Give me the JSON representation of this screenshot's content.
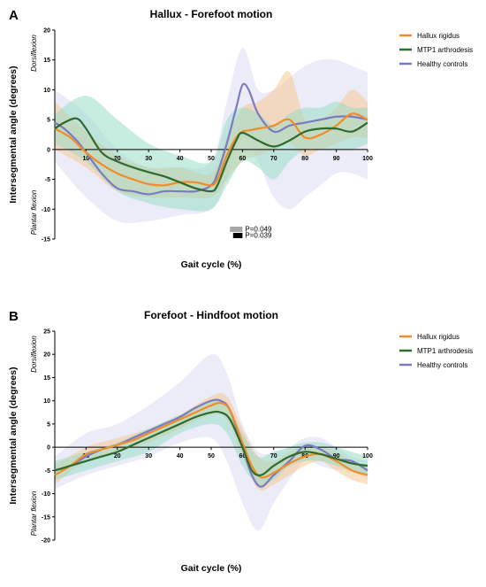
{
  "chart_data": [
    {
      "panel": "A",
      "type": "line",
      "title": "Hallux - Forefoot motion",
      "xlabel": "Gait cycle (%)",
      "ylabel": "Intersegmental angle (degrees)",
      "upper_label": "Dorsiflexion",
      "lower_label": "Plantar flexion",
      "xlim": [
        0,
        100
      ],
      "ylim": [
        -15,
        20
      ],
      "xticks": [
        10,
        20,
        30,
        40,
        50,
        60,
        70,
        80,
        90,
        100
      ],
      "yticks": [
        -15,
        -10,
        -5,
        0,
        5,
        10,
        15,
        20
      ],
      "grid": false,
      "legend_position": "top-right",
      "series": [
        {
          "name": "Hallux rigidus",
          "color": "#F28C28",
          "band_color": "#F7C48A",
          "x": [
            0,
            5,
            10,
            15,
            20,
            25,
            30,
            35,
            40,
            45,
            50,
            52,
            55,
            58,
            60,
            62,
            65,
            70,
            75,
            80,
            85,
            90,
            95,
            100
          ],
          "y": [
            3.5,
            2.0,
            -0.5,
            -2.5,
            -4.0,
            -5.0,
            -5.8,
            -6.0,
            -5.5,
            -5.5,
            -6.0,
            -5.0,
            -1.0,
            2.0,
            3.0,
            3.2,
            3.5,
            4.0,
            5.0,
            2.0,
            2.5,
            4.0,
            6.0,
            5.0
          ],
          "band_x": [
            0,
            10,
            20,
            30,
            40,
            50,
            55,
            60,
            65,
            70,
            75,
            80,
            85,
            90,
            95,
            100
          ],
          "band_upper": [
            8,
            3,
            -1,
            -3,
            -3,
            -4,
            2,
            7,
            8,
            10,
            13,
            5,
            5,
            7,
            10,
            8
          ],
          "band_lower": [
            0,
            -3,
            -7,
            -8,
            -8,
            -8,
            -5,
            -2,
            -1,
            0,
            1,
            -1,
            0,
            1,
            2,
            2
          ]
        },
        {
          "name": "MTP1 arthrodesis",
          "color": "#2E6B2E",
          "band_color": "#8FDCC2",
          "x": [
            0,
            3,
            7,
            10,
            15,
            20,
            25,
            30,
            35,
            40,
            45,
            50,
            52,
            55,
            58,
            60,
            65,
            70,
            75,
            80,
            85,
            90,
            95,
            100
          ],
          "y": [
            3.5,
            4.5,
            5.2,
            3.5,
            -0.5,
            -2.0,
            -3.0,
            -3.8,
            -4.5,
            -5.5,
            -6.5,
            -7.0,
            -6.0,
            -2.0,
            1.5,
            2.8,
            1.5,
            0.5,
            1.5,
            3.0,
            3.5,
            3.5,
            3.0,
            4.5
          ],
          "band_x": [
            0,
            10,
            20,
            30,
            40,
            50,
            55,
            60,
            65,
            70,
            75,
            80,
            85,
            90,
            95,
            100
          ],
          "band_upper": [
            6,
            9,
            5,
            1,
            -1,
            -2,
            5,
            7,
            6,
            4,
            6,
            7,
            7,
            8,
            7,
            7
          ],
          "band_lower": [
            1,
            -2,
            -7,
            -9,
            -10,
            -10,
            -6,
            -2,
            -3,
            -5,
            -2,
            0,
            0,
            0,
            0,
            1
          ]
        },
        {
          "name": "Healthy controls",
          "color": "#7B7BC4",
          "band_color": "#DCDCF4",
          "x": [
            0,
            3,
            7,
            10,
            15,
            20,
            25,
            30,
            35,
            40,
            45,
            50,
            52,
            55,
            58,
            60,
            62,
            65,
            70,
            75,
            80,
            85,
            90,
            95,
            100
          ],
          "y": [
            4.5,
            3.5,
            1.5,
            -0.5,
            -4.0,
            -6.5,
            -7.0,
            -7.5,
            -7.0,
            -7.0,
            -7.0,
            -6.0,
            -4.0,
            1.0,
            7.0,
            10.8,
            10.0,
            6.0,
            3.0,
            4.0,
            4.5,
            5.0,
            5.5,
            5.5,
            5.0
          ],
          "band_x": [
            0,
            10,
            20,
            30,
            40,
            50,
            55,
            60,
            65,
            70,
            75,
            80,
            85,
            90,
            95,
            100
          ],
          "band_upper": [
            10,
            6,
            0,
            -3,
            -3,
            -2,
            8,
            17,
            10,
            10,
            12,
            14,
            15,
            15,
            14,
            13
          ],
          "band_lower": [
            -2,
            -8,
            -12,
            -12,
            -11,
            -10,
            -5,
            2,
            -2,
            -8,
            -10,
            -8,
            -6,
            -4,
            -4,
            -5
          ]
        }
      ],
      "significance": [
        {
          "label": "P=0.049",
          "x_start": 56,
          "x_end": 60,
          "color": "#A6A6A6"
        },
        {
          "label": "P=0.039",
          "x_start": 57,
          "x_end": 60,
          "color": "#000000"
        }
      ]
    },
    {
      "panel": "B",
      "type": "line",
      "title": "Forefoot - Hindfoot motion",
      "xlabel": "Gait cycle (%)",
      "ylabel": "Intersegmental angle (degrees)",
      "upper_label": "Dorsiflexion",
      "lower_label": "Plantar flexion",
      "xlim": [
        0,
        100
      ],
      "ylim": [
        -20,
        25
      ],
      "xticks": [
        10,
        20,
        30,
        40,
        50,
        60,
        70,
        80,
        90,
        100
      ],
      "yticks": [
        -20,
        -15,
        -10,
        -5,
        0,
        5,
        10,
        15,
        20,
        25
      ],
      "grid": false,
      "legend_position": "top-right",
      "series": [
        {
          "name": "Hallux rigidus",
          "color": "#F28C28",
          "band_color": "#F7C48A",
          "x": [
            0,
            5,
            10,
            15,
            20,
            25,
            30,
            35,
            40,
            45,
            50,
            53,
            56,
            60,
            63,
            66,
            70,
            75,
            80,
            85,
            90,
            95,
            100
          ],
          "y": [
            -6.0,
            -4.0,
            -1.5,
            -0.5,
            0.5,
            1.5,
            3.0,
            4.5,
            6.0,
            7.5,
            9.0,
            9.5,
            8.0,
            1.0,
            -4.0,
            -6.5,
            -5.5,
            -3.5,
            -2.0,
            -1.5,
            -3.0,
            -5.0,
            -6.0
          ],
          "band_x": [
            0,
            10,
            20,
            30,
            40,
            50,
            55,
            60,
            65,
            70,
            75,
            80,
            85,
            90,
            95,
            100
          ],
          "band_upper": [
            -4,
            0,
            2,
            4,
            7,
            11,
            11,
            4,
            -2,
            -3,
            -1,
            0,
            0,
            -1,
            -3,
            -4
          ],
          "band_lower": [
            -8,
            -3,
            -1,
            1,
            4,
            7,
            6,
            -2,
            -9,
            -8,
            -6,
            -4,
            -3,
            -5,
            -7,
            -8
          ]
        },
        {
          "name": "MTP1 arthrodesis",
          "color": "#2E6B2E",
          "band_color": "#8FDCC2",
          "x": [
            0,
            5,
            10,
            15,
            20,
            25,
            30,
            35,
            40,
            45,
            50,
            53,
            56,
            60,
            63,
            66,
            70,
            75,
            80,
            85,
            90,
            95,
            100
          ],
          "y": [
            -5.0,
            -4.0,
            -3.0,
            -2.0,
            -1.0,
            0.5,
            2.0,
            3.5,
            5.0,
            6.5,
            7.5,
            7.5,
            6.0,
            0.0,
            -5.0,
            -6.0,
            -4.0,
            -2.0,
            -1.0,
            -1.5,
            -2.5,
            -3.5,
            -4.0
          ],
          "band_x": [
            0,
            10,
            20,
            30,
            40,
            50,
            55,
            60,
            65,
            70,
            75,
            80,
            85,
            90,
            95,
            100
          ],
          "band_upper": [
            -3,
            -1,
            1,
            4,
            7,
            10,
            9,
            3,
            -2,
            -1,
            0,
            1,
            1,
            0,
            -1,
            -2
          ],
          "band_lower": [
            -7,
            -5,
            -3,
            -1,
            3,
            5,
            3,
            -4,
            -8,
            -7,
            -4,
            -3,
            -3,
            -4,
            -5,
            -6
          ]
        },
        {
          "name": "Healthy controls",
          "color": "#7B7BC4",
          "band_color": "#DCDCF4",
          "x": [
            0,
            5,
            10,
            15,
            20,
            25,
            30,
            35,
            40,
            45,
            50,
            53,
            56,
            60,
            63,
            66,
            70,
            75,
            80,
            85,
            90,
            95,
            100
          ],
          "y": [
            -5.0,
            -4.0,
            -2.0,
            -0.5,
            0.5,
            2.0,
            3.5,
            5.0,
            6.5,
            8.5,
            10.0,
            10.0,
            8.0,
            0.0,
            -6.0,
            -8.5,
            -6.0,
            -3.0,
            0.3,
            -0.5,
            -2.5,
            -3.0,
            -5.0
          ],
          "band_x": [
            0,
            10,
            20,
            30,
            40,
            50,
            55,
            60,
            65,
            70,
            75,
            80,
            85,
            90,
            95,
            100
          ],
          "band_upper": [
            -2,
            3,
            5,
            9,
            14,
            20,
            16,
            5,
            -1,
            -1,
            0,
            2,
            2,
            0,
            -2,
            -3
          ],
          "band_lower": [
            -9,
            -6,
            -4,
            -2,
            1,
            2,
            -3,
            -12,
            -18,
            -12,
            -7,
            -3,
            -4,
            -5,
            -5,
            -7
          ]
        }
      ],
      "significance": []
    }
  ]
}
